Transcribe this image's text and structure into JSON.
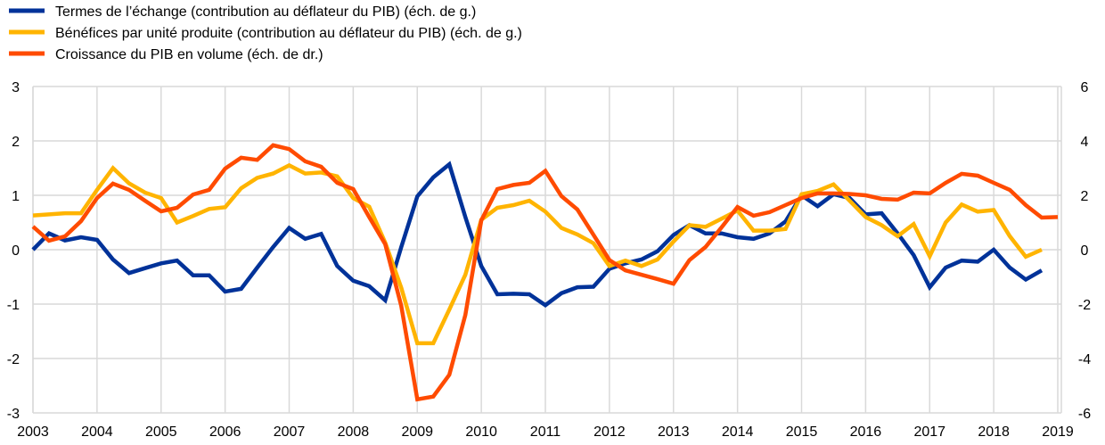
{
  "chart_data": {
    "type": "line",
    "title": "",
    "x_start": "2003-Q1",
    "frequency": "quarterly",
    "x_ticks": [
      "2003",
      "2004",
      "2005",
      "2006",
      "2007",
      "2008",
      "2009",
      "2010",
      "2011",
      "2012",
      "2013",
      "2014",
      "2015",
      "2016",
      "2017",
      "2018",
      "2019"
    ],
    "x_range": [
      2003,
      2019
    ],
    "y_left": {
      "range": [
        -3,
        3
      ],
      "ticks": [
        "-3",
        "-2",
        "-1",
        "0",
        "1",
        "2",
        "3"
      ]
    },
    "y_right": {
      "range": [
        -6,
        6
      ],
      "ticks": [
        "-6",
        "-4",
        "-2",
        "0",
        "2",
        "4",
        "6"
      ]
    },
    "grid": true,
    "legend_position": "top-left",
    "series": [
      {
        "name": "Termes de l’échange (contribution au déflateur du PIB) (éch. de g.)",
        "axis": "left",
        "color": "#003299",
        "values": [
          0.0,
          0.3,
          0.17,
          0.23,
          0.18,
          -0.18,
          -0.43,
          -0.34,
          -0.25,
          -0.2,
          -0.47,
          -0.47,
          -0.77,
          -0.72,
          -0.33,
          0.05,
          0.4,
          0.2,
          0.29,
          -0.3,
          -0.57,
          -0.67,
          -0.93,
          0.05,
          0.98,
          1.33,
          1.57,
          0.6,
          -0.3,
          -0.82,
          -0.81,
          -0.82,
          -1.02,
          -0.8,
          -0.69,
          -0.68,
          -0.35,
          -0.25,
          -0.18,
          -0.03,
          0.27,
          0.45,
          0.3,
          0.3,
          0.23,
          0.2,
          0.3,
          0.52,
          1.0,
          0.8,
          1.02,
          0.95,
          0.65,
          0.67,
          0.3,
          -0.1,
          -0.69,
          -0.33,
          -0.2,
          -0.22,
          0.0,
          -0.33,
          -0.55,
          -0.38
        ]
      },
      {
        "name": "Bénéfices par unité produite (contribution au déflateur du PIB) (éch. de g.)",
        "axis": "left",
        "color": "#FFB400",
        "values": [
          0.63,
          0.65,
          0.67,
          0.67,
          1.1,
          1.5,
          1.22,
          1.05,
          0.95,
          0.5,
          0.62,
          0.75,
          0.78,
          1.13,
          1.32,
          1.4,
          1.55,
          1.4,
          1.42,
          1.35,
          0.95,
          0.79,
          0.13,
          -0.7,
          -1.72,
          -1.72,
          -1.1,
          -0.46,
          0.55,
          0.77,
          0.82,
          0.9,
          0.7,
          0.4,
          0.28,
          0.12,
          -0.3,
          -0.2,
          -0.3,
          -0.18,
          0.15,
          0.45,
          0.42,
          0.57,
          0.72,
          0.35,
          0.35,
          0.38,
          1.02,
          1.08,
          1.2,
          0.9,
          0.6,
          0.45,
          0.25,
          0.47,
          -0.12,
          0.5,
          0.83,
          0.7,
          0.73,
          0.25,
          -0.13,
          0.0
        ]
      },
      {
        "name": "Croissance du PIB en volume (éch. de dr.)",
        "axis": "right",
        "color": "#FF4B00",
        "values": [
          0.85,
          0.33,
          0.49,
          1.05,
          1.9,
          2.43,
          2.2,
          1.8,
          1.41,
          1.54,
          2.03,
          2.2,
          2.98,
          3.38,
          3.3,
          3.84,
          3.7,
          3.25,
          3.05,
          2.46,
          2.23,
          1.2,
          0.2,
          -2.07,
          -5.5,
          -5.4,
          -4.6,
          -2.4,
          1.08,
          2.23,
          2.38,
          2.46,
          2.9,
          1.97,
          1.48,
          0.55,
          -0.38,
          -0.76,
          -0.92,
          -1.08,
          -1.25,
          -0.38,
          0.1,
          0.82,
          1.57,
          1.25,
          1.38,
          1.64,
          1.9,
          2.07,
          2.07,
          2.05,
          2.0,
          1.87,
          1.84,
          2.1,
          2.07,
          2.46,
          2.79,
          2.72,
          2.46,
          2.2,
          1.64,
          1.18,
          1.2
        ]
      }
    ]
  }
}
